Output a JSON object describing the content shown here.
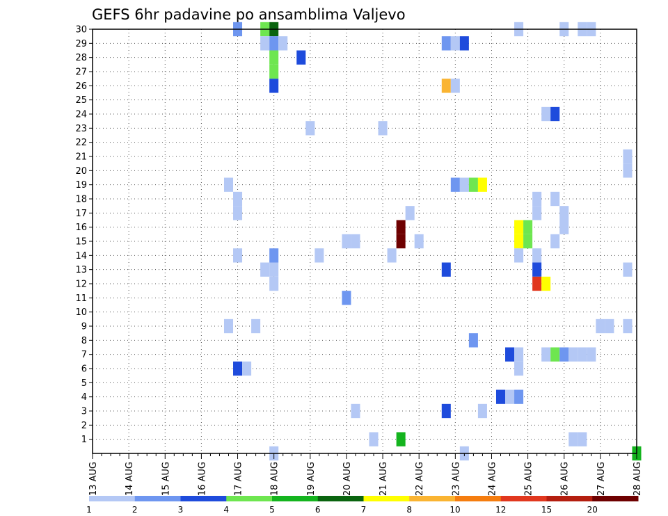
{
  "chart_data": {
    "type": "heatmap",
    "title": "GEFS 6hr padavine po ansamblima Valjevo",
    "xlabel": "",
    "ylabel": "",
    "x_tick_labels": [
      "13 AUG",
      "14 AUG",
      "15 AUG",
      "16 AUG",
      "17 AUG",
      "18 AUG",
      "19 AUG",
      "20 AUG",
      "21 AUG",
      "22 AUG",
      "23 AUG",
      "24 AUG",
      "25 AUG",
      "26 AUG",
      "27 AUG",
      "28 AUG"
    ],
    "x_range_days": [
      0,
      15
    ],
    "x_step_hours": 6,
    "y_tick_labels": [
      "1",
      "2",
      "3",
      "4",
      "5",
      "6",
      "7",
      "8",
      "9",
      "10",
      "11",
      "12",
      "13",
      "14",
      "15",
      "16",
      "17",
      "18",
      "19",
      "20",
      "21",
      "22",
      "23",
      "24",
      "25",
      "26",
      "27",
      "28",
      "29",
      "30"
    ],
    "y_range": [
      0,
      30
    ],
    "grid": true,
    "legend_placement": "bottom",
    "legend": {
      "colors": [
        "#b4c8f5",
        "#6e96f0",
        "#1e4bdc",
        "#6ee650",
        "#14b41e",
        "#0a640f",
        "#ffff00",
        "#fab432",
        "#f57d0f",
        "#e1371e",
        "#b41e0f",
        "#6e0000"
      ],
      "labels": [
        "1",
        "2",
        "3",
        "4",
        "5",
        "6",
        "7",
        "8",
        "10",
        "12",
        "15",
        "20"
      ]
    },
    "series_note": "cells list [member, day_offset_from_13_AUG, precip_mm_per_6h]",
    "cells": [
      [
        30,
        4.0,
        2.5
      ],
      [
        30,
        4.75,
        4.5
      ],
      [
        30,
        5.0,
        6.5
      ],
      [
        30,
        11.75,
        1.5
      ],
      [
        30,
        13.0,
        1.5
      ],
      [
        30,
        13.5,
        1.5
      ],
      [
        30,
        13.75,
        1.5
      ],
      [
        29,
        4.75,
        1.5
      ],
      [
        29,
        5.0,
        2.5
      ],
      [
        29,
        5.25,
        1.5
      ],
      [
        29,
        9.75,
        2.5
      ],
      [
        29,
        10.0,
        1.5
      ],
      [
        29,
        10.25,
        3.5
      ],
      [
        28,
        5.0,
        4.5
      ],
      [
        28,
        5.75,
        3.5
      ],
      [
        27,
        5.0,
        4.5
      ],
      [
        26,
        5.0,
        3.5
      ],
      [
        26,
        9.75,
        9.0
      ],
      [
        26,
        10.0,
        1.5
      ],
      [
        24,
        12.5,
        1.5
      ],
      [
        24,
        12.75,
        3.5
      ],
      [
        23,
        6.0,
        1.5
      ],
      [
        23,
        8.0,
        1.5
      ],
      [
        21,
        14.75,
        1.5
      ],
      [
        20,
        14.75,
        1.5
      ],
      [
        19,
        3.75,
        1.5
      ],
      [
        19,
        10.0,
        2.5
      ],
      [
        19,
        10.25,
        1.5
      ],
      [
        19,
        10.5,
        4.5
      ],
      [
        19,
        10.75,
        7.5
      ],
      [
        18,
        4.0,
        1.5
      ],
      [
        18,
        12.25,
        1.5
      ],
      [
        18,
        12.75,
        1.5
      ],
      [
        17,
        4.0,
        1.5
      ],
      [
        17,
        8.75,
        1.5
      ],
      [
        17,
        12.25,
        1.5
      ],
      [
        17,
        13.0,
        1.5
      ],
      [
        16,
        8.5,
        25.0
      ],
      [
        16,
        11.75,
        7.5
      ],
      [
        16,
        12.0,
        4.5
      ],
      [
        16,
        13.0,
        1.5
      ],
      [
        15,
        7.0,
        1.5
      ],
      [
        15,
        7.25,
        1.5
      ],
      [
        15,
        8.5,
        25.0
      ],
      [
        15,
        9.0,
        1.5
      ],
      [
        15,
        11.75,
        7.5
      ],
      [
        15,
        12.0,
        4.5
      ],
      [
        15,
        12.75,
        1.5
      ],
      [
        14,
        4.0,
        1.5
      ],
      [
        14,
        5.0,
        2.5
      ],
      [
        14,
        6.25,
        1.5
      ],
      [
        14,
        8.25,
        1.5
      ],
      [
        14,
        11.75,
        1.5
      ],
      [
        14,
        12.25,
        1.5
      ],
      [
        13,
        4.75,
        1.5
      ],
      [
        13,
        5.0,
        1.5
      ],
      [
        13,
        9.75,
        3.5
      ],
      [
        13,
        12.25,
        3.5
      ],
      [
        13,
        14.75,
        1.5
      ],
      [
        12,
        5.0,
        1.5
      ],
      [
        12,
        12.25,
        13.0
      ],
      [
        12,
        12.5,
        7.5
      ],
      [
        11,
        7.0,
        2.5
      ],
      [
        9,
        3.75,
        1.5
      ],
      [
        9,
        4.5,
        1.5
      ],
      [
        9,
        14.0,
        1.5
      ],
      [
        9,
        14.25,
        1.5
      ],
      [
        9,
        14.75,
        1.5
      ],
      [
        8,
        10.5,
        2.5
      ],
      [
        7,
        11.5,
        3.5
      ],
      [
        7,
        11.75,
        1.5
      ],
      [
        7,
        12.5,
        1.5
      ],
      [
        7,
        12.75,
        4.5
      ],
      [
        7,
        13.0,
        2.5
      ],
      [
        7,
        13.25,
        1.5
      ],
      [
        7,
        13.5,
        1.5
      ],
      [
        7,
        13.75,
        1.5
      ],
      [
        6,
        4.0,
        3.5
      ],
      [
        6,
        4.25,
        1.5
      ],
      [
        6,
        11.75,
        1.5
      ],
      [
        4,
        11.25,
        3.5
      ],
      [
        4,
        11.5,
        1.5
      ],
      [
        4,
        11.75,
        2.5
      ],
      [
        3,
        7.25,
        1.5
      ],
      [
        3,
        9.75,
        3.5
      ],
      [
        3,
        10.75,
        1.5
      ],
      [
        1,
        7.75,
        1.5
      ],
      [
        1,
        8.5,
        5.5
      ],
      [
        1,
        13.25,
        1.5
      ],
      [
        1,
        13.5,
        1.5
      ],
      [
        0,
        5.0,
        1.5
      ],
      [
        0,
        10.25,
        1.5
      ],
      [
        0,
        15.0,
        5.5
      ]
    ]
  }
}
